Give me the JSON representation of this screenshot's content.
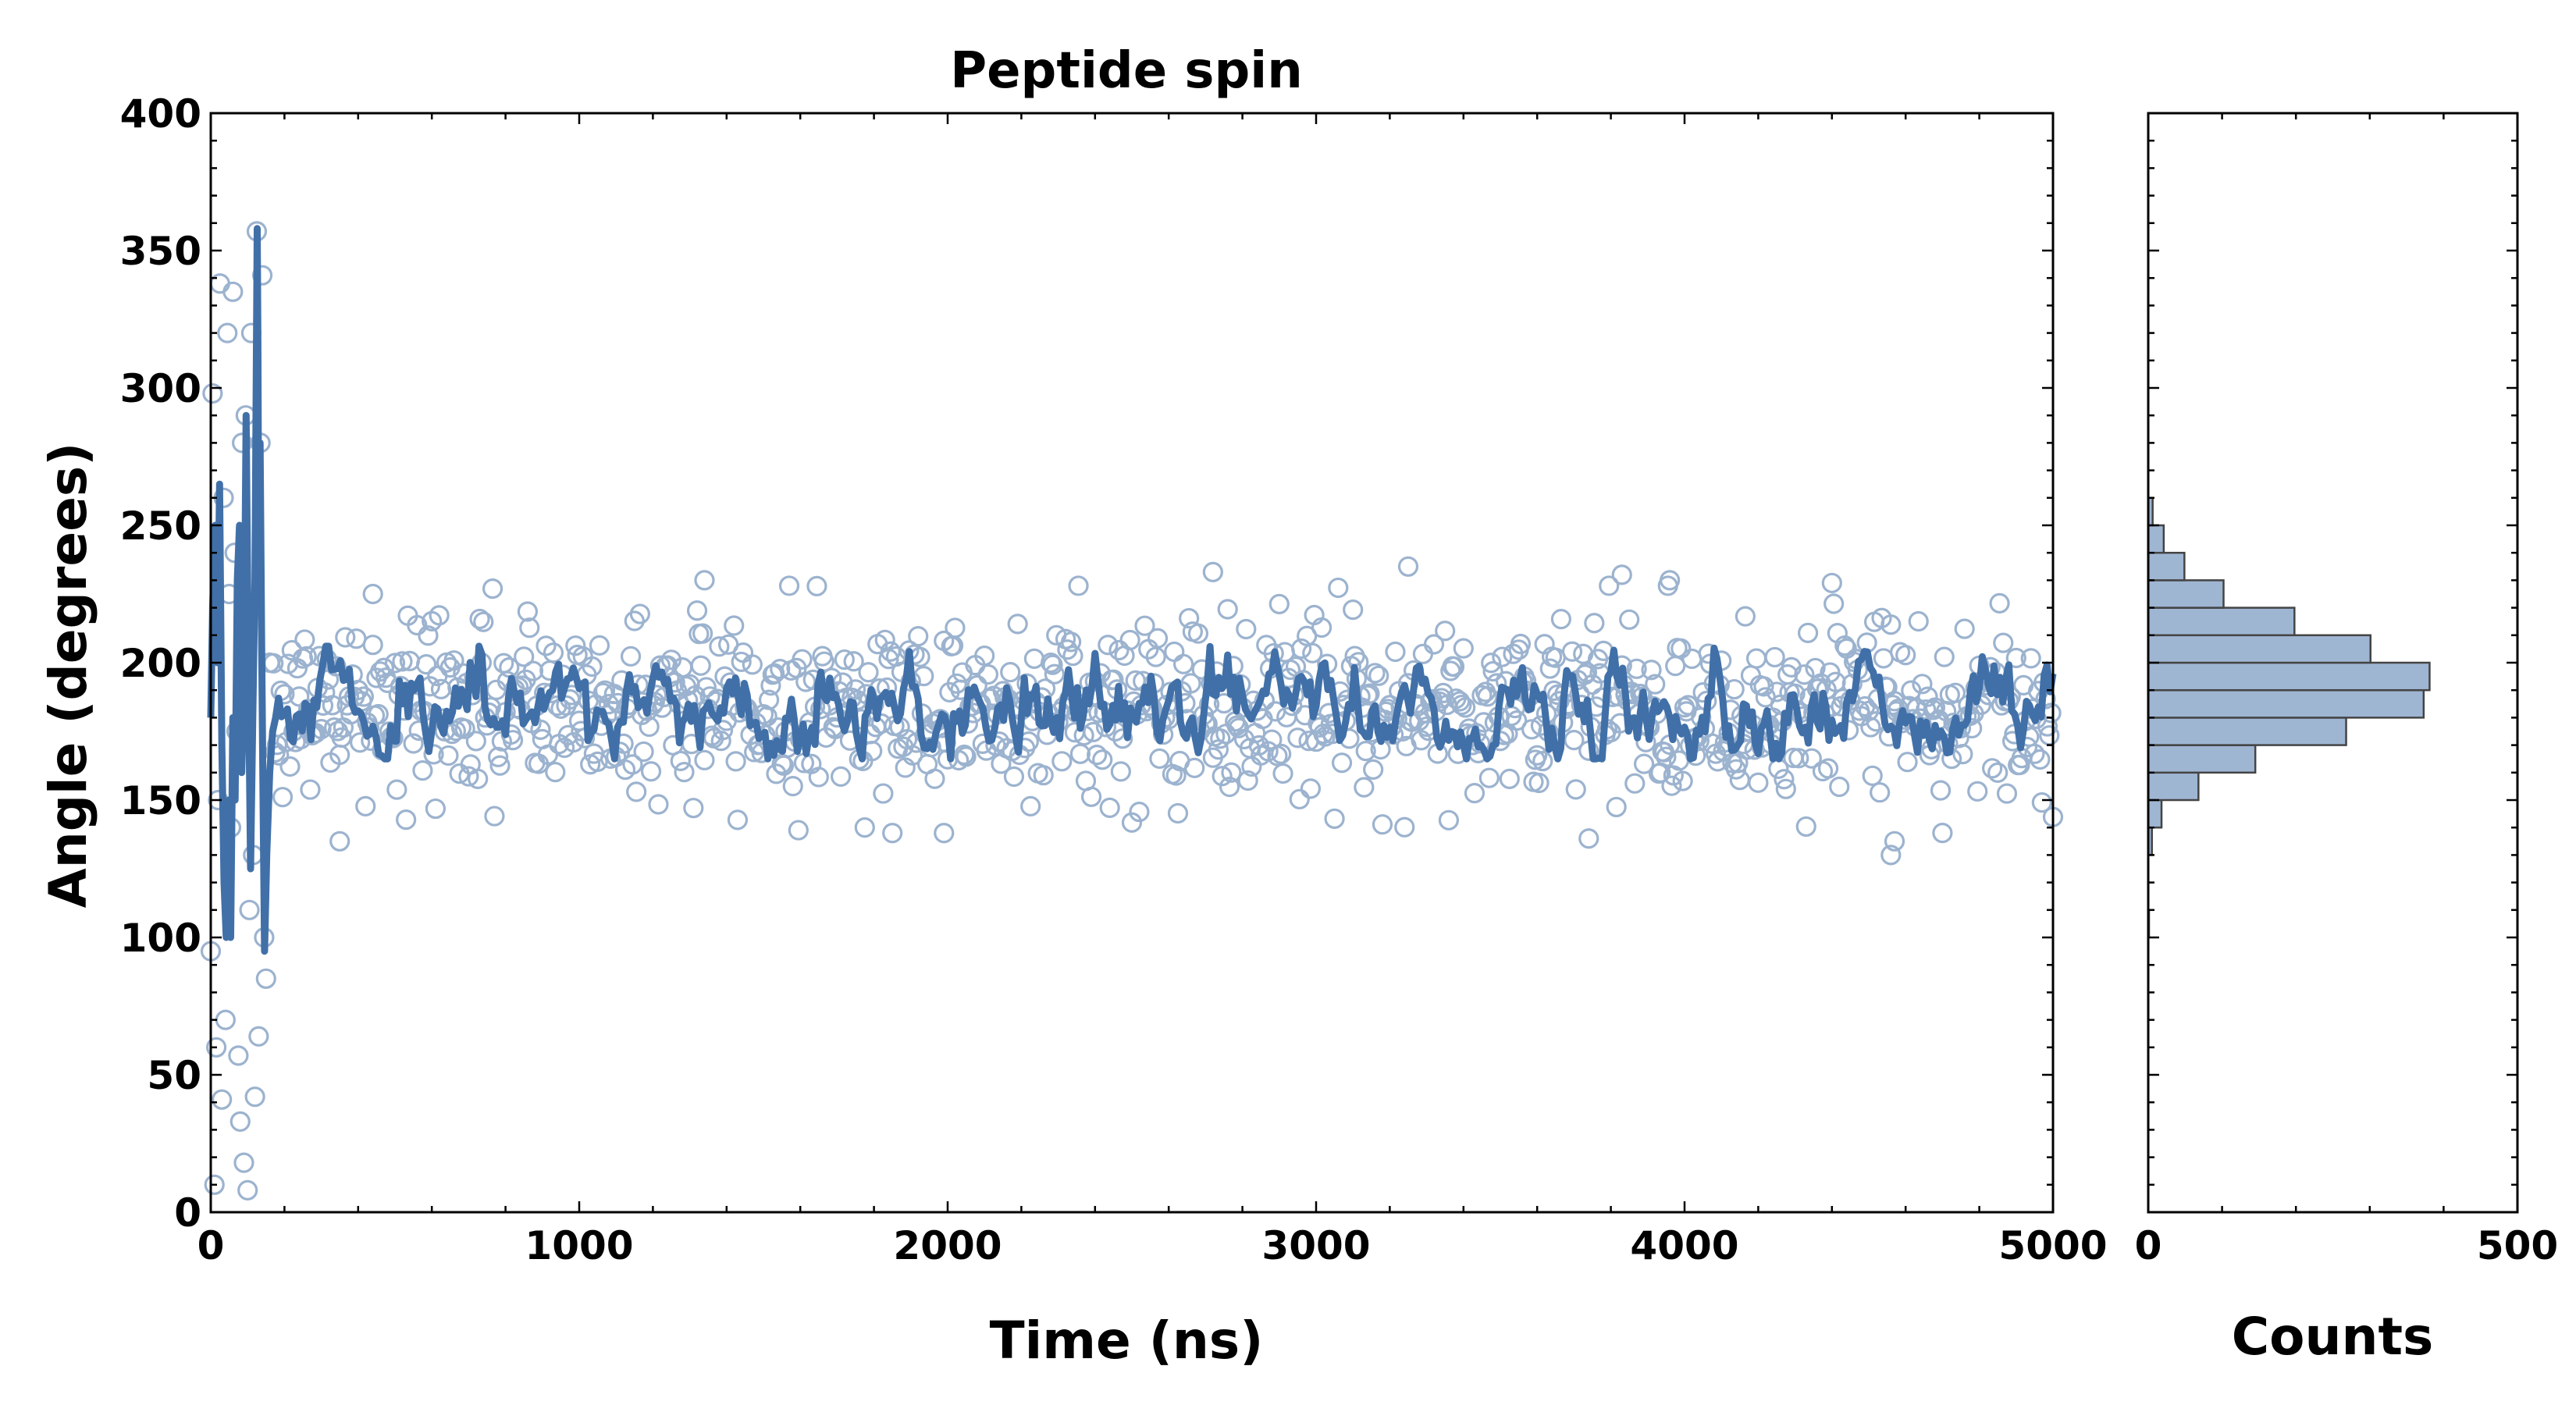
{
  "chart_data": {
    "type": "scatter",
    "title": "Peptide spin",
    "main": {
      "xlabel": "Time (ns)",
      "ylabel": "Angle (degrees)",
      "xlim": [
        0,
        5000
      ],
      "ylim": [
        0,
        400
      ],
      "xticks": [
        0,
        1000,
        2000,
        3000,
        4000,
        5000
      ],
      "yticks": [
        0,
        50,
        100,
        150,
        200,
        250,
        300,
        350,
        400
      ],
      "grid": false,
      "colors": {
        "scatter": "#9cb3cf",
        "line": "#4170a8"
      },
      "scatter_description": "Open circles, ~1000+ samples at ~5 ns spacing; mean ~185 deg with ~+/-20 deg spread after ~200 ns; large excursions (0-360 deg) during the first ~150 ns",
      "early_points": [
        {
          "x": 0,
          "y": 95
        },
        {
          "x": 5,
          "y": 298
        },
        {
          "x": 10,
          "y": 10
        },
        {
          "x": 15,
          "y": 60
        },
        {
          "x": 20,
          "y": 150
        },
        {
          "x": 25,
          "y": 338
        },
        {
          "x": 30,
          "y": 41
        },
        {
          "x": 35,
          "y": 260
        },
        {
          "x": 40,
          "y": 70
        },
        {
          "x": 45,
          "y": 320
        },
        {
          "x": 50,
          "y": 225
        },
        {
          "x": 55,
          "y": 140
        },
        {
          "x": 60,
          "y": 335
        },
        {
          "x": 65,
          "y": 240
        },
        {
          "x": 70,
          "y": 175
        },
        {
          "x": 75,
          "y": 57
        },
        {
          "x": 80,
          "y": 33
        },
        {
          "x": 85,
          "y": 280
        },
        {
          "x": 90,
          "y": 18
        },
        {
          "x": 95,
          "y": 290
        },
        {
          "x": 100,
          "y": 8
        },
        {
          "x": 105,
          "y": 110
        },
        {
          "x": 110,
          "y": 320
        },
        {
          "x": 115,
          "y": 130
        },
        {
          "x": 120,
          "y": 42
        },
        {
          "x": 125,
          "y": 357
        },
        {
          "x": 130,
          "y": 64
        },
        {
          "x": 135,
          "y": 280
        },
        {
          "x": 140,
          "y": 341
        },
        {
          "x": 145,
          "y": 100
        },
        {
          "x": 150,
          "y": 85
        },
        {
          "x": 160,
          "y": 200
        }
      ],
      "outliers": [
        {
          "x": 350,
          "y": 135
        },
        {
          "x": 440,
          "y": 225
        },
        {
          "x": 1340,
          "y": 230
        },
        {
          "x": 1990,
          "y": 138
        },
        {
          "x": 2720,
          "y": 233
        },
        {
          "x": 3250,
          "y": 235
        },
        {
          "x": 3740,
          "y": 136
        },
        {
          "x": 3830,
          "y": 232
        },
        {
          "x": 3960,
          "y": 230
        },
        {
          "x": 4560,
          "y": 130
        },
        {
          "x": 4570,
          "y": 135
        },
        {
          "x": 4400,
          "y": 229
        }
      ],
      "running_average_description": "Thick solid line: running average; oscillates ~165-205 deg after ~180 ns; wild swings between ~95 and ~358 deg before that"
    },
    "histogram": {
      "type": "bar",
      "orientation": "horizontal",
      "xlabel": "Counts",
      "xlim": [
        0,
        500
      ],
      "xticks": [
        0,
        500
      ],
      "ylim": [
        0,
        400
      ],
      "bin_width": 10,
      "colors": {
        "fill": "#9fb6d3",
        "edge": "#444444"
      },
      "bins": [
        {
          "y0": 100,
          "y1": 110,
          "count": 1
        },
        {
          "y0": 130,
          "y1": 140,
          "count": 5
        },
        {
          "y0": 140,
          "y1": 150,
          "count": 18
        },
        {
          "y0": 150,
          "y1": 160,
          "count": 68
        },
        {
          "y0": 160,
          "y1": 170,
          "count": 145
        },
        {
          "y0": 170,
          "y1": 180,
          "count": 268
        },
        {
          "y0": 180,
          "y1": 190,
          "count": 373
        },
        {
          "y0": 190,
          "y1": 200,
          "count": 381
        },
        {
          "y0": 200,
          "y1": 210,
          "count": 301
        },
        {
          "y0": 210,
          "y1": 220,
          "count": 198
        },
        {
          "y0": 220,
          "y1": 230,
          "count": 102
        },
        {
          "y0": 230,
          "y1": 240,
          "count": 49
        },
        {
          "y0": 240,
          "y1": 250,
          "count": 21
        },
        {
          "y0": 250,
          "y1": 260,
          "count": 6
        }
      ]
    }
  }
}
